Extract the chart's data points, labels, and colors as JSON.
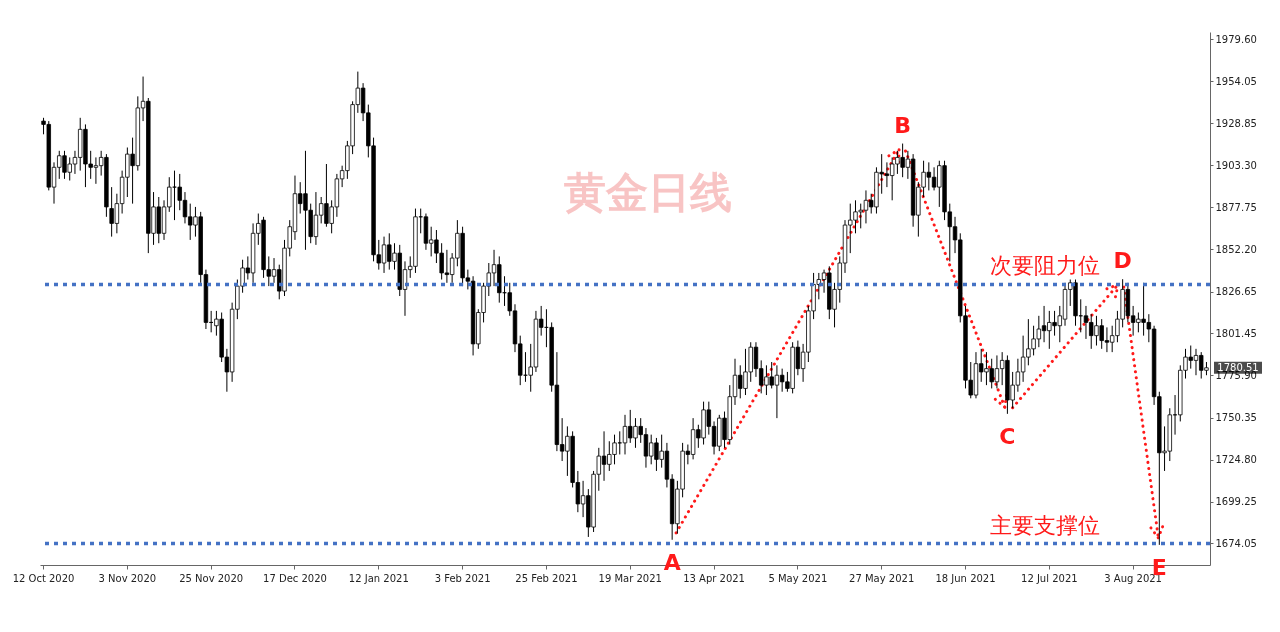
{
  "chart_data": {
    "type": "candlestick",
    "title": "黄金日线",
    "categories": [
      "12 Oct 2020",
      null,
      null,
      null,
      null,
      null,
      null,
      null,
      null,
      null,
      null,
      null,
      null,
      null,
      null,
      null,
      "3 Nov 2020",
      null,
      null,
      null,
      null,
      null,
      null,
      null,
      null,
      null,
      null,
      null,
      null,
      null,
      null,
      null,
      "25 Nov 2020",
      null,
      null,
      null,
      null,
      null,
      null,
      null,
      null,
      null,
      null,
      null,
      null,
      null,
      null,
      null,
      "17 Dec 2020",
      null,
      null,
      null,
      null,
      null,
      null,
      null,
      null,
      null,
      null,
      null,
      null,
      null,
      null,
      null,
      "12 Jan 2021",
      null,
      null,
      null,
      null,
      null,
      null,
      null,
      null,
      null,
      null,
      null,
      null,
      null,
      null,
      null,
      "3 Feb 2021",
      null,
      null,
      null,
      null,
      null,
      null,
      null,
      null,
      null,
      null,
      null,
      null,
      null,
      null,
      null,
      "25 Feb 2021",
      null,
      null,
      null,
      null,
      null,
      null,
      null,
      null,
      null,
      null,
      null,
      null,
      null,
      null,
      null,
      "19 Mar 2021",
      null,
      null,
      null,
      null,
      null,
      null,
      null,
      null,
      null,
      null,
      null,
      null,
      null,
      null,
      null,
      "13 Apr 2021",
      null,
      null,
      null,
      null,
      null,
      null,
      null,
      null,
      null,
      null,
      null,
      null,
      null,
      null,
      null,
      "5 May 2021",
      null,
      null,
      null,
      null,
      null,
      null,
      null,
      null,
      null,
      null,
      null,
      null,
      null,
      null,
      null,
      "27 May 2021",
      null,
      null,
      null,
      null,
      null,
      null,
      null,
      null,
      null,
      null,
      null,
      null,
      null,
      null,
      null,
      "18 Jun 2021",
      null,
      null,
      null,
      null,
      null,
      null,
      null,
      null,
      null,
      null,
      null,
      null,
      null,
      null,
      null,
      "12 Jul 2021",
      null,
      null,
      null,
      null,
      null,
      null,
      null,
      null,
      null,
      null,
      null,
      null,
      null,
      null,
      null,
      "3 Aug 2021",
      null,
      null,
      null,
      null,
      null,
      null,
      null,
      null,
      null,
      null,
      null,
      null,
      null,
      null
    ],
    "ohlc": [
      [
        1930,
        1932,
        1922,
        1928
      ],
      [
        1928,
        1930,
        1888,
        1890
      ],
      [
        1890,
        1905,
        1880,
        1902
      ],
      [
        1902,
        1912,
        1895,
        1909
      ],
      [
        1909,
        1912,
        1895,
        1899
      ],
      [
        1899,
        1908,
        1894,
        1904
      ],
      [
        1904,
        1912,
        1898,
        1908
      ],
      [
        1908,
        1932,
        1900,
        1925
      ],
      [
        1925,
        1928,
        1890,
        1904
      ],
      [
        1904,
        1912,
        1895,
        1902
      ],
      [
        1902,
        1908,
        1892,
        1903
      ],
      [
        1903,
        1912,
        1897,
        1908
      ],
      [
        1908,
        1910,
        1872,
        1878
      ],
      [
        1877,
        1890,
        1860,
        1868
      ],
      [
        1868,
        1886,
        1862,
        1880
      ],
      [
        1880,
        1900,
        1874,
        1896
      ],
      [
        1896,
        1914,
        1884,
        1910
      ],
      [
        1910,
        1920,
        1880,
        1903
      ],
      [
        1903,
        1945,
        1900,
        1938
      ],
      [
        1938,
        1957,
        1930,
        1942
      ],
      [
        1942,
        1944,
        1850,
        1862
      ],
      [
        1862,
        1887,
        1855,
        1878
      ],
      [
        1878,
        1884,
        1856,
        1862
      ],
      [
        1862,
        1882,
        1858,
        1878
      ],
      [
        1878,
        1896,
        1875,
        1890
      ],
      [
        1890,
        1900,
        1870,
        1890
      ],
      [
        1890,
        1898,
        1876,
        1882
      ],
      [
        1882,
        1887,
        1868,
        1872
      ],
      [
        1872,
        1880,
        1858,
        1867
      ],
      [
        1867,
        1878,
        1860,
        1872
      ],
      [
        1872,
        1875,
        1832,
        1837
      ],
      [
        1837,
        1840,
        1804,
        1808
      ],
      [
        1808,
        1815,
        1802,
        1808
      ],
      [
        1806,
        1815,
        1800,
        1810
      ],
      [
        1810,
        1814,
        1784,
        1787
      ],
      [
        1787,
        1792,
        1766,
        1778
      ],
      [
        1778,
        1820,
        1772,
        1816
      ],
      [
        1816,
        1834,
        1810,
        1830
      ],
      [
        1830,
        1846,
        1826,
        1841
      ],
      [
        1841,
        1848,
        1834,
        1838
      ],
      [
        1838,
        1868,
        1832,
        1862
      ],
      [
        1862,
        1874,
        1855,
        1868
      ],
      [
        1870,
        1872,
        1835,
        1840
      ],
      [
        1840,
        1848,
        1830,
        1836
      ],
      [
        1836,
        1847,
        1832,
        1840
      ],
      [
        1840,
        1843,
        1822,
        1827
      ],
      [
        1827,
        1858,
        1824,
        1853
      ],
      [
        1853,
        1870,
        1848,
        1866
      ],
      [
        1863,
        1897,
        1858,
        1886
      ],
      [
        1886,
        1893,
        1874,
        1880
      ],
      [
        1886,
        1912,
        1852,
        1876
      ],
      [
        1876,
        1880,
        1856,
        1860
      ],
      [
        1860,
        1887,
        1855,
        1873
      ],
      [
        1873,
        1884,
        1868,
        1880
      ],
      [
        1880,
        1904,
        1866,
        1868
      ],
      [
        1868,
        1882,
        1862,
        1878
      ],
      [
        1878,
        1898,
        1872,
        1895
      ],
      [
        1895,
        1903,
        1890,
        1900
      ],
      [
        1900,
        1918,
        1895,
        1915
      ],
      [
        1915,
        1942,
        1910,
        1940
      ],
      [
        1940,
        1960,
        1935,
        1950
      ],
      [
        1950,
        1953,
        1930,
        1935
      ],
      [
        1935,
        1940,
        1908,
        1915
      ],
      [
        1915,
        1920,
        1845,
        1849
      ],
      [
        1849,
        1858,
        1840,
        1844
      ],
      [
        1844,
        1860,
        1838,
        1855
      ],
      [
        1855,
        1862,
        1840,
        1845
      ],
      [
        1845,
        1856,
        1840,
        1850
      ],
      [
        1850,
        1855,
        1824,
        1828
      ],
      [
        1828,
        1845,
        1812,
        1840
      ],
      [
        1840,
        1848,
        1835,
        1842
      ],
      [
        1842,
        1877,
        1838,
        1872
      ],
      [
        1872,
        1877,
        1862,
        1872
      ],
      [
        1872,
        1874,
        1852,
        1856
      ],
      [
        1856,
        1866,
        1848,
        1858
      ],
      [
        1858,
        1864,
        1844,
        1850
      ],
      [
        1850,
        1856,
        1834,
        1838
      ],
      [
        1838,
        1852,
        1832,
        1837
      ],
      [
        1837,
        1850,
        1832,
        1847
      ],
      [
        1847,
        1870,
        1842,
        1862
      ],
      [
        1862,
        1866,
        1830,
        1835
      ],
      [
        1835,
        1840,
        1828,
        1833
      ],
      [
        1833,
        1836,
        1788,
        1795
      ],
      [
        1795,
        1816,
        1792,
        1814
      ],
      [
        1814,
        1832,
        1808,
        1830
      ],
      [
        1830,
        1844,
        1824,
        1838
      ],
      [
        1838,
        1852,
        1830,
        1843
      ],
      [
        1843,
        1848,
        1820,
        1826
      ],
      [
        1826,
        1836,
        1818,
        1826
      ],
      [
        1826,
        1832,
        1812,
        1815
      ],
      [
        1815,
        1819,
        1790,
        1795
      ],
      [
        1795,
        1800,
        1770,
        1776
      ],
      [
        1776,
        1790,
        1772,
        1776
      ],
      [
        1776,
        1795,
        1766,
        1781
      ],
      [
        1781,
        1815,
        1778,
        1810
      ],
      [
        1810,
        1818,
        1800,
        1805
      ],
      [
        1805,
        1816,
        1793,
        1805
      ],
      [
        1805,
        1808,
        1766,
        1770
      ],
      [
        1770,
        1790,
        1730,
        1734
      ],
      [
        1734,
        1750,
        1724,
        1730
      ],
      [
        1730,
        1745,
        1715,
        1739
      ],
      [
        1739,
        1742,
        1708,
        1711
      ],
      [
        1711,
        1718,
        1693,
        1698
      ],
      [
        1698,
        1712,
        1690,
        1703
      ],
      [
        1703,
        1707,
        1678,
        1684
      ],
      [
        1684,
        1718,
        1681,
        1716
      ],
      [
        1716,
        1732,
        1706,
        1727
      ],
      [
        1727,
        1742,
        1712,
        1722
      ],
      [
        1722,
        1736,
        1718,
        1728
      ],
      [
        1728,
        1740,
        1722,
        1735
      ],
      [
        1735,
        1742,
        1728,
        1735
      ],
      [
        1735,
        1752,
        1728,
        1745
      ],
      [
        1745,
        1755,
        1735,
        1738
      ],
      [
        1738,
        1750,
        1732,
        1745
      ],
      [
        1745,
        1750,
        1735,
        1740
      ],
      [
        1740,
        1744,
        1720,
        1727
      ],
      [
        1727,
        1740,
        1722,
        1735
      ],
      [
        1735,
        1738,
        1718,
        1725
      ],
      [
        1725,
        1740,
        1720,
        1730
      ],
      [
        1730,
        1735,
        1708,
        1713
      ],
      [
        1713,
        1716,
        1676.3,
        1686
      ],
      [
        1686,
        1712,
        1680,
        1707
      ],
      [
        1707,
        1735,
        1702,
        1730
      ],
      [
        1730,
        1734,
        1722,
        1728
      ],
      [
        1728,
        1750,
        1725,
        1743
      ],
      [
        1743,
        1746,
        1732,
        1738
      ],
      [
        1738,
        1760,
        1734,
        1755
      ],
      [
        1755,
        1760,
        1740,
        1745
      ],
      [
        1745,
        1748,
        1728,
        1733
      ],
      [
        1733,
        1752,
        1730,
        1750
      ],
      [
        1750,
        1754,
        1732,
        1737
      ],
      [
        1737,
        1770,
        1734,
        1763
      ],
      [
        1763,
        1786,
        1758,
        1776
      ],
      [
        1776,
        1782,
        1762,
        1768
      ],
      [
        1768,
        1792,
        1764,
        1778
      ],
      [
        1778,
        1796,
        1772,
        1793
      ],
      [
        1793,
        1796,
        1775,
        1780
      ],
      [
        1780,
        1785,
        1765,
        1770
      ],
      [
        1770,
        1782,
        1764,
        1775
      ],
      [
        1775,
        1784,
        1768,
        1770
      ],
      [
        1770,
        1782,
        1750,
        1776
      ],
      [
        1776,
        1780,
        1766,
        1772
      ],
      [
        1772,
        1778,
        1766,
        1768
      ],
      [
        1768,
        1796,
        1765,
        1793
      ],
      [
        1793,
        1797,
        1776,
        1780
      ],
      [
        1780,
        1795,
        1772,
        1790
      ],
      [
        1790,
        1818,
        1784,
        1815
      ],
      [
        1815,
        1838,
        1810,
        1831
      ],
      [
        1831,
        1838,
        1822,
        1834
      ],
      [
        1834,
        1840,
        1826,
        1838
      ],
      [
        1838,
        1842,
        1810,
        1816
      ],
      [
        1816,
        1832,
        1805,
        1828
      ],
      [
        1828,
        1848,
        1820,
        1844
      ],
      [
        1844,
        1870,
        1838,
        1867
      ],
      [
        1867,
        1880,
        1850,
        1870
      ],
      [
        1870,
        1882,
        1862,
        1875
      ],
      [
        1875,
        1880,
        1865,
        1876
      ],
      [
        1876,
        1888,
        1868,
        1882
      ],
      [
        1882,
        1886,
        1874,
        1878
      ],
      [
        1878,
        1902,
        1874,
        1899
      ],
      [
        1899,
        1910,
        1886,
        1898
      ],
      [
        1898,
        1905,
        1890,
        1897
      ],
      [
        1897,
        1908,
        1882,
        1904
      ],
      [
        1904,
        1912,
        1898,
        1908
      ],
      [
        1908,
        1916.4,
        1896,
        1902
      ],
      [
        1902,
        1912,
        1895,
        1907
      ],
      [
        1907,
        1910,
        1866,
        1873
      ],
      [
        1873,
        1893,
        1860,
        1890
      ],
      [
        1890,
        1906,
        1884,
        1899
      ],
      [
        1899,
        1905,
        1888,
        1896
      ],
      [
        1896,
        1902,
        1888,
        1890
      ],
      [
        1890,
        1906,
        1878,
        1903
      ],
      [
        1903,
        1906,
        1870,
        1875
      ],
      [
        1875,
        1880,
        1845,
        1866
      ],
      [
        1866,
        1872,
        1850,
        1858
      ],
      [
        1858,
        1862,
        1808,
        1812
      ],
      [
        1812,
        1818,
        1768,
        1773
      ],
      [
        1773,
        1784,
        1762,
        1764
      ],
      [
        1764,
        1790,
        1762,
        1783
      ],
      [
        1783,
        1792,
        1772,
        1778
      ],
      [
        1778,
        1790,
        1770,
        1780
      ],
      [
        1780,
        1786,
        1768,
        1772
      ],
      [
        1772,
        1788,
        1768,
        1780
      ],
      [
        1780,
        1790,
        1770,
        1785
      ],
      [
        1785,
        1788,
        1752.6,
        1761
      ],
      [
        1761,
        1778,
        1756,
        1770
      ],
      [
        1770,
        1786,
        1766,
        1778
      ],
      [
        1778,
        1800,
        1772,
        1787
      ],
      [
        1787,
        1810,
        1782,
        1792
      ],
      [
        1792,
        1806,
        1788,
        1798
      ],
      [
        1798,
        1812,
        1793,
        1804
      ],
      [
        1806,
        1818,
        1796,
        1803
      ],
      [
        1803,
        1815,
        1792,
        1808
      ],
      [
        1808,
        1815,
        1800,
        1806
      ],
      [
        1806,
        1818,
        1796,
        1812
      ],
      [
        1810,
        1832,
        1806,
        1828
      ],
      [
        1828,
        1834,
        1818,
        1832
      ],
      [
        1832,
        1834,
        1806,
        1812
      ],
      [
        1812,
        1822,
        1802,
        1812
      ],
      [
        1812,
        1818,
        1798,
        1808
      ],
      [
        1808,
        1813,
        1792,
        1800
      ],
      [
        1800,
        1812,
        1794,
        1806
      ],
      [
        1806,
        1810,
        1792,
        1797
      ],
      [
        1797,
        1805,
        1790,
        1796
      ],
      [
        1796,
        1806,
        1790,
        1800
      ],
      [
        1800,
        1815,
        1796,
        1810
      ],
      [
        1810,
        1834.2,
        1805,
        1828
      ],
      [
        1828,
        1832,
        1808,
        1812
      ],
      [
        1812,
        1818,
        1800,
        1808
      ],
      [
        1808,
        1814,
        1802,
        1810
      ],
      [
        1810,
        1832,
        1800,
        1808
      ],
      [
        1808,
        1813,
        1796,
        1804
      ],
      [
        1804,
        1806,
        1758,
        1763
      ],
      [
        1763,
        1766,
        1673.2,
        1729
      ],
      [
        1729,
        1745,
        1718,
        1730
      ],
      [
        1730,
        1756,
        1724,
        1752
      ],
      [
        1752,
        1764,
        1740,
        1752
      ],
      [
        1752,
        1782,
        1748,
        1779
      ],
      [
        1779,
        1792,
        1774,
        1787
      ],
      [
        1787,
        1794,
        1780,
        1785
      ],
      [
        1785,
        1792,
        1776,
        1788
      ],
      [
        1788,
        1790,
        1774,
        1779
      ],
      [
        1779,
        1784,
        1776,
        1780.51
      ]
    ],
    "ylim": [
      1661,
      1984
    ],
    "yticks": [
      1674.05,
      1699.25,
      {
        "value": 1724.8,
        "label": "1724.80"
      },
      1750.35,
      {
        "value": 1775.9,
        "label": "1775.90"
      },
      1801.45,
      1826.65,
      {
        "value": 1852.2,
        "label": "1852.20"
      },
      1877.75,
      {
        "value": 1903.3,
        "label": "1903.30"
      },
      1928.85,
      1954.05,
      {
        "value": 1979.6,
        "label": "1979.60"
      }
    ],
    "ref_lines": [
      {
        "axis": "y",
        "value": 1831,
        "label": "次要阻力位",
        "color": "#4472c4",
        "line_style": "dotted"
      },
      {
        "axis": "y",
        "value": 1674,
        "label": "主要支撑位",
        "color": "#4472c4",
        "line_style": "dotted"
      }
    ],
    "annotations": [
      {
        "text": "A",
        "y": 1676.3
      },
      {
        "text": "B",
        "y": 1916.4
      },
      {
        "text": "C",
        "y": 1752.6
      },
      {
        "text": "D",
        "y": 1834.2
      },
      {
        "text": "E",
        "y": 1673.2
      },
      "1780.51"
    ]
  }
}
